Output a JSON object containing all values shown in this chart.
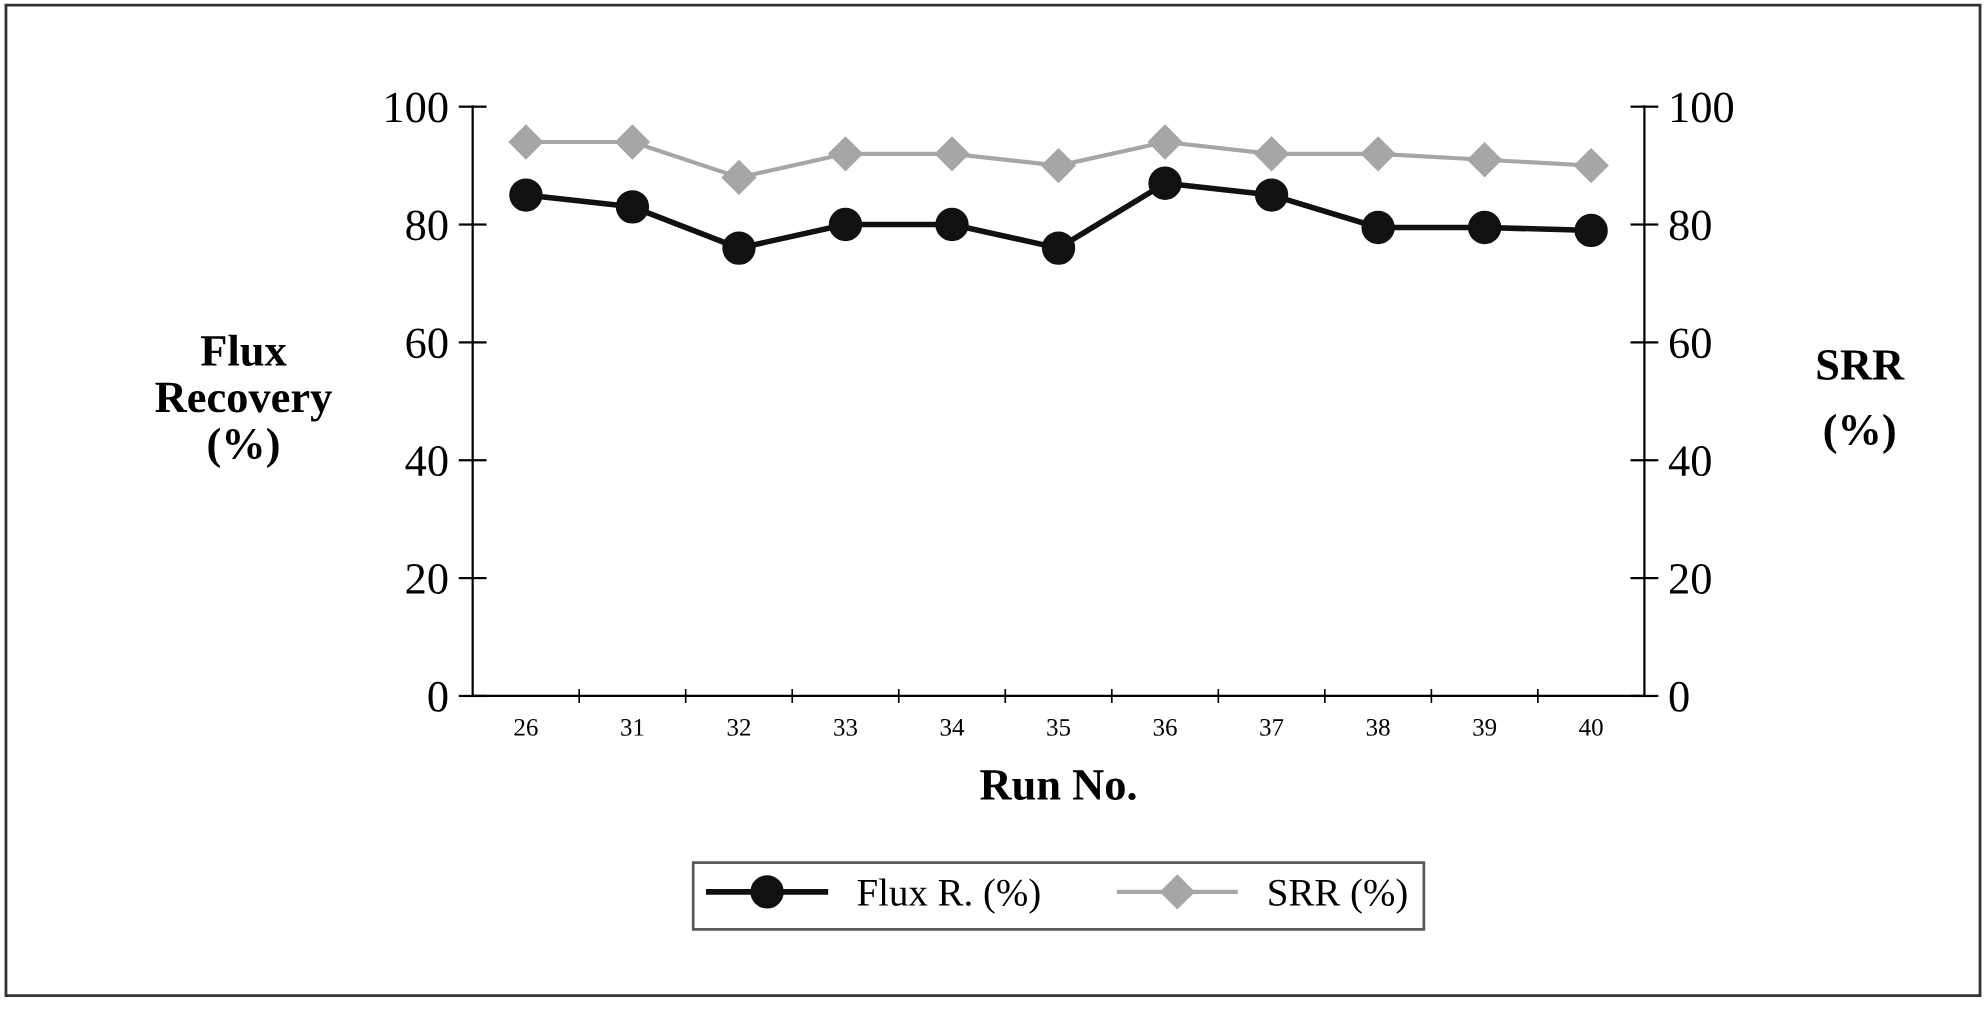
{
  "chart_data": {
    "type": "line",
    "xlabel": "Run No.",
    "ylabel": "Flux\nRecovery\n(%)",
    "y2label": "SRR\n(%)",
    "categories": [
      "26",
      "31",
      "32",
      "33",
      "34",
      "35",
      "36",
      "37",
      "38",
      "39",
      "40"
    ],
    "series": [
      {
        "name": "Flux R. (%)",
        "color": "#111111",
        "marker": "circle",
        "values": [
          85,
          83,
          76,
          80,
          80,
          76,
          87,
          85,
          79.5,
          79.5,
          79
        ]
      },
      {
        "name": "SRR (%)",
        "color": "#a6a6a6",
        "marker": "diamond",
        "values": [
          94,
          94,
          88,
          92,
          92,
          90,
          94,
          92,
          92,
          91,
          90
        ]
      }
    ],
    "ylim": [
      0,
      100
    ],
    "yticks": [
      0,
      20,
      40,
      60,
      80,
      100
    ],
    "y2lim": [
      0,
      100
    ],
    "y2ticks": [
      0,
      20,
      40,
      60,
      80,
      100
    ],
    "grid": false,
    "legend": "bottom",
    "line_style": "solid"
  }
}
